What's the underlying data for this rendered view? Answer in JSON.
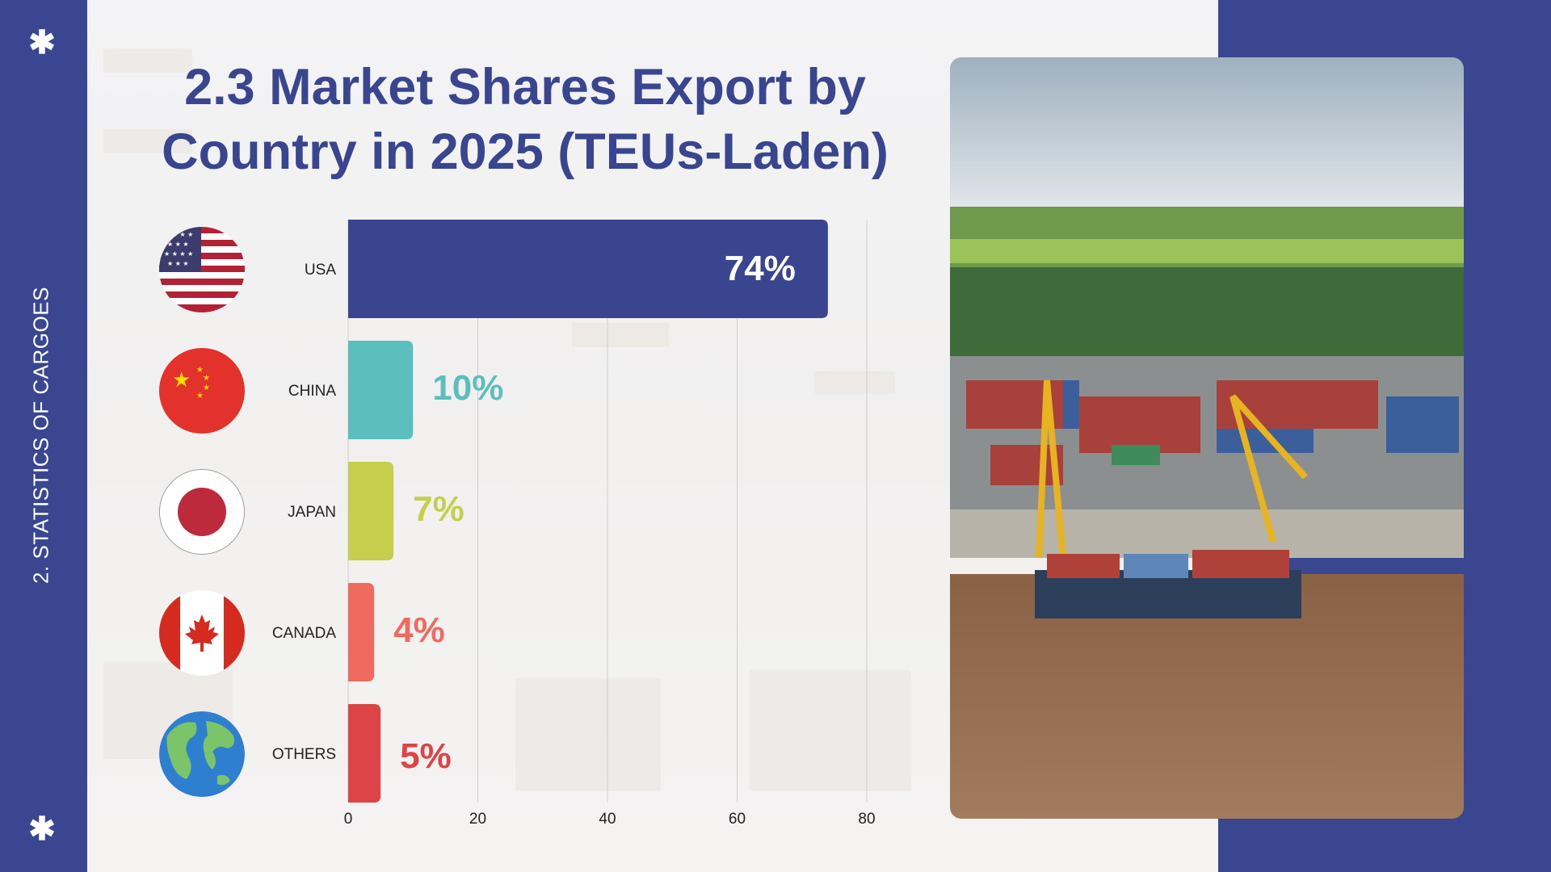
{
  "sidebar": {
    "section_label": "2. STATISTICS OF CARGOES",
    "decor_icon": "asterisk-icon"
  },
  "title": {
    "line1": "2.3 Market Shares Export by",
    "line2": "Country in 2025 (TEUs-Laden)"
  },
  "chart_data": {
    "type": "bar",
    "orientation": "horizontal",
    "title": "2.3 Market Shares Export by Country in 2025 (TEUs-Laden)",
    "categories": [
      "USA",
      "CHINA",
      "JAPAN",
      "CANADA",
      "OTHERS"
    ],
    "values": [
      74,
      10,
      7,
      4,
      5
    ],
    "data_labels": [
      "74%",
      "10%",
      "7%",
      "4%",
      "5%"
    ],
    "colors": [
      "#39468f",
      "#5dbfbd",
      "#c6cf4c",
      "#f06a60",
      "#dc4447"
    ],
    "xlim": [
      0,
      80
    ],
    "xticks": [
      "0",
      "20",
      "40",
      "60",
      "80"
    ],
    "grid": true,
    "xlabel": "",
    "ylabel": ""
  },
  "flags": [
    "usa-flag-icon",
    "china-flag-icon",
    "japan-flag-icon",
    "canada-flag-icon",
    "globe-icon"
  ],
  "photo": {
    "description_icon": "port-aerial-photo"
  }
}
